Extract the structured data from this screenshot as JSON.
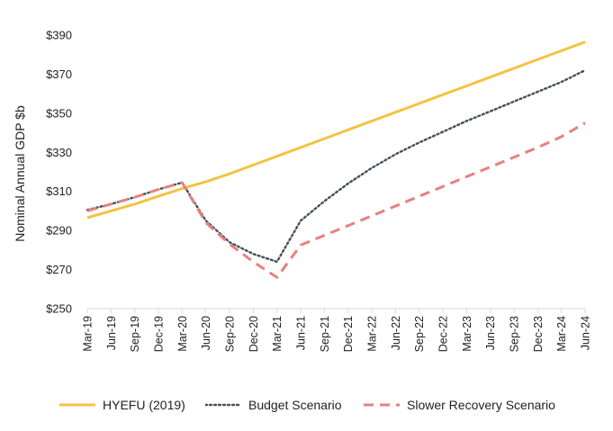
{
  "chart_data": {
    "type": "line",
    "ylabel": "Nominal Annual GDP $b",
    "ylim": [
      250,
      390
    ],
    "yticks": [
      "$390",
      "$370",
      "$350",
      "$330",
      "$310",
      "$290",
      "$270",
      "$250"
    ],
    "ytick_values": [
      390,
      370,
      350,
      330,
      310,
      290,
      270,
      250
    ],
    "categories": [
      "Mar-19",
      "Jun-19",
      "Sep-19",
      "Dec-19",
      "Mar-20",
      "Jun-20",
      "Sep-20",
      "Dec-20",
      "Mar-21",
      "Jun-21",
      "Sep-21",
      "Dec-21",
      "Mar-22",
      "Jun-22",
      "Sep-22",
      "Dec-22",
      "Mar-23",
      "Jun-23",
      "Sep-23",
      "Dec-23",
      "Mar-24",
      "Jun-24"
    ],
    "legend_position": "bottom",
    "grid": false,
    "series": [
      {
        "name": "HYEFU (2019)",
        "color": "#F5C242",
        "style": "solid",
        "values": [
          296.5,
          300,
          303.5,
          307.5,
          311.5,
          315,
          319,
          323.5,
          328,
          332.5,
          337,
          341.5,
          346,
          350.5,
          355,
          359.5,
          364,
          368.5,
          373,
          377.5,
          382,
          386.5
        ]
      },
      {
        "name": "Budget Scenario",
        "color": "#44505A",
        "style": "dotted",
        "values": [
          300.5,
          303.5,
          307,
          311,
          314.5,
          295,
          284,
          278,
          274,
          295,
          305,
          314,
          322,
          329,
          335,
          340.5,
          346,
          351,
          356,
          361,
          366,
          372
        ]
      },
      {
        "name": "Slower Recovery Scenario",
        "color": "#E88080",
        "style": "dashed",
        "values": [
          300,
          303.5,
          307,
          311,
          314.5,
          294,
          283,
          274,
          266,
          282.5,
          287.5,
          292.5,
          297.5,
          302.5,
          307.5,
          312.5,
          317.5,
          322.5,
          327.5,
          332.5,
          338,
          345
        ]
      }
    ]
  }
}
